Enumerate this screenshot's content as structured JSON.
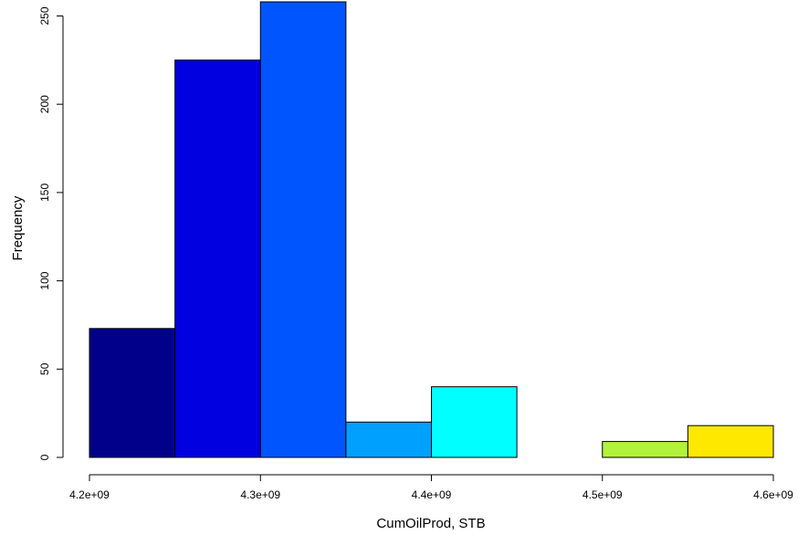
{
  "chart_data": {
    "type": "bar",
    "title": "",
    "xlabel": "CumOilProd, STB",
    "ylabel": "Frequency",
    "bins": [
      {
        "x0": 4200000000.0,
        "x1": 4250000000.0,
        "count": 73,
        "color": "#00008B"
      },
      {
        "x0": 4250000000.0,
        "x1": 4300000000.0,
        "count": 225,
        "color": "#0000E0"
      },
      {
        "x0": 4300000000.0,
        "x1": 4350000000.0,
        "count": 258,
        "color": "#0055FF"
      },
      {
        "x0": 4350000000.0,
        "x1": 4400000000.0,
        "count": 20,
        "color": "#00A0FF"
      },
      {
        "x0": 4400000000.0,
        "x1": 4450000000.0,
        "count": 40,
        "color": "#00FFFF"
      },
      {
        "x0": 4450000000.0,
        "x1": 4500000000.0,
        "count": 0,
        "color": "#7FFF7F"
      },
      {
        "x0": 4500000000.0,
        "x1": 4550000000.0,
        "count": 9,
        "color": "#B2F23C"
      },
      {
        "x0": 4550000000.0,
        "x1": 4600000000.0,
        "count": 18,
        "color": "#FFE800"
      }
    ],
    "xlim": [
      4200000000.0,
      4600000000.0
    ],
    "ylim": [
      0,
      258
    ],
    "x_ticks": [
      {
        "value": 4200000000.0,
        "label": "4.2e+09"
      },
      {
        "value": 4300000000.0,
        "label": "4.3e+09"
      },
      {
        "value": 4400000000.0,
        "label": "4.4e+09"
      },
      {
        "value": 4500000000.0,
        "label": "4.5e+09"
      },
      {
        "value": 4600000000.0,
        "label": "4.6e+09"
      }
    ],
    "y_ticks": [
      {
        "value": 0,
        "label": "0"
      },
      {
        "value": 50,
        "label": "50"
      },
      {
        "value": 100,
        "label": "100"
      },
      {
        "value": 150,
        "label": "150"
      },
      {
        "value": 200,
        "label": "200"
      },
      {
        "value": 250,
        "label": "250"
      }
    ],
    "grid": false,
    "legend": "none"
  }
}
